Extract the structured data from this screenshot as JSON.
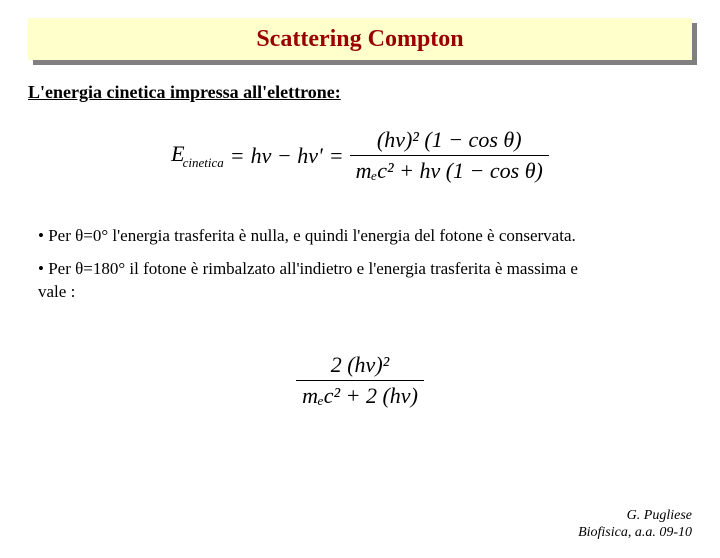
{
  "colors": {
    "titleBg": "#ffffcc",
    "titleShadow": "#808080",
    "titleColor": "#990000",
    "text": "#000000",
    "pageBg": "#ffffff"
  },
  "title": "Scattering Compton",
  "subheading": "L'energia cinetica impressa all'elettrone:",
  "equation1": {
    "lhs_symbol": "E",
    "lhs_subscript": "cinetica",
    "eq": "=",
    "term1": "hν − hν'",
    "numerator": "(hν)² (1 − cos θ)",
    "denominator": "mₑc² + hν (1 − cos θ)"
  },
  "bullets": {
    "b1": "• Per θ=0° l'energia trasferita è nulla, e quindi l'energia del fotone è conservata.",
    "b2_line1": "• Per θ=180° il fotone è rimbalzato all'indietro e l'energia trasferita è massima e",
    "b2_line2": "vale :"
  },
  "equation2": {
    "numerator": "2 (hν)²",
    "denominator": "mₑc² + 2 (hν)"
  },
  "footer": {
    "line1": "G. Pugliese",
    "line2": "Biofisica, a.a. 09-10"
  }
}
